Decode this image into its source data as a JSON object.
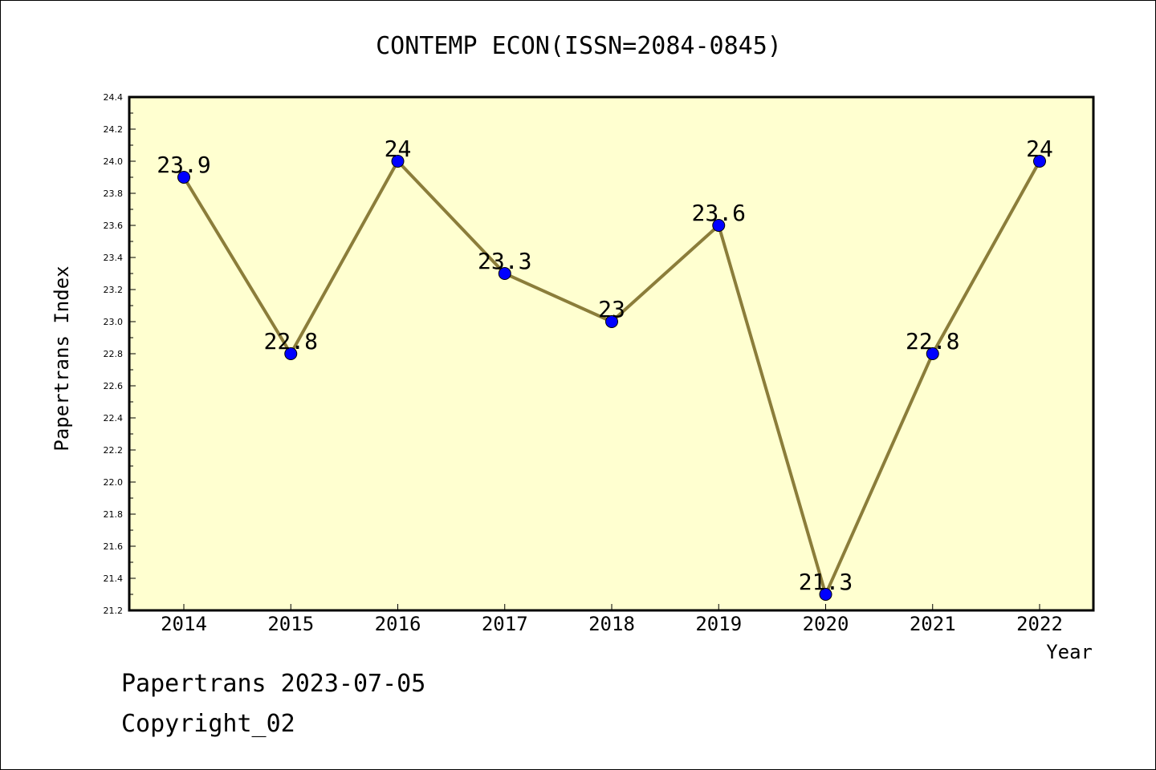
{
  "chart_data": {
    "type": "line",
    "title": "CONTEMP ECON(ISSN=2084-0845)",
    "xlabel": "Year",
    "ylabel": "Papertrans Index",
    "categories": [
      "2014",
      "2015",
      "2016",
      "2017",
      "2018",
      "2019",
      "2020",
      "2021",
      "2022"
    ],
    "series": [
      {
        "values": [
          23.9,
          22.8,
          24,
          23.3,
          23,
          23.6,
          21.3,
          22.8,
          24
        ],
        "labels": [
          "23.9",
          "22.8",
          "24",
          "23.3",
          "23",
          "23.6",
          "21.3",
          "22.8",
          "24"
        ]
      }
    ],
    "ylim": [
      21.2,
      24.4
    ],
    "yticks": [
      "21.2",
      "21.4",
      "21.6",
      "21.8",
      "22.0",
      "22.2",
      "22.4",
      "22.6",
      "22.8",
      "23.0",
      "23.2",
      "23.4",
      "23.6",
      "23.8",
      "24.0",
      "24.2",
      "24.4"
    ],
    "grid": false,
    "colors": {
      "plot_background": "#ffffd0",
      "line": "#8b7d3a",
      "marker": "#0000ff"
    }
  },
  "footer": {
    "line1": "Papertrans 2023-07-05",
    "line2": "Copyright_02"
  }
}
